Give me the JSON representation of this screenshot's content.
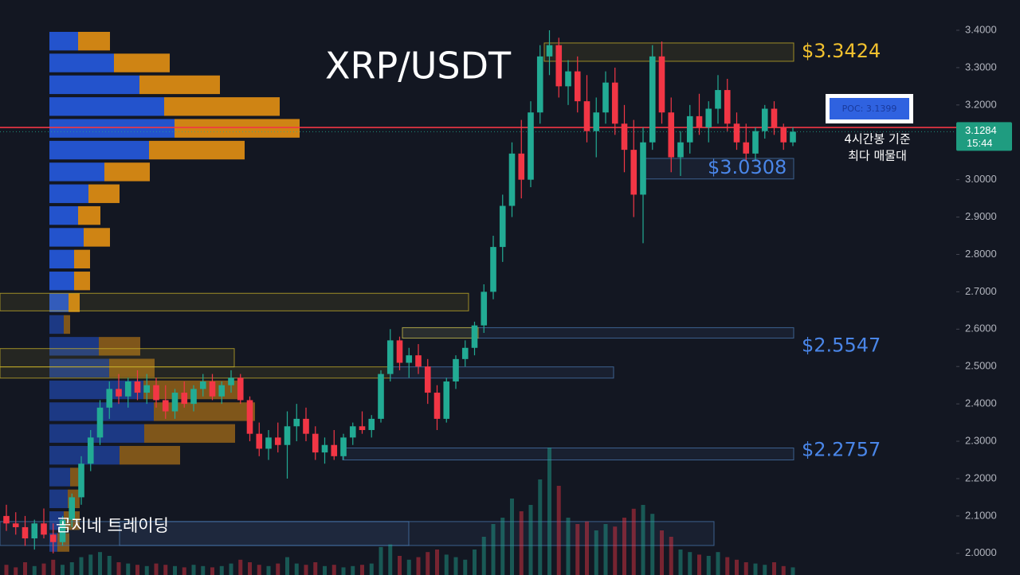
{
  "chart_data": {
    "type": "candlestick",
    "title": "XRP/USDT",
    "watermark": "곰지네 트레이딩",
    "up_color": "#22ab94",
    "down_color": "#f23645",
    "ylim": [
      1.942,
      3.481
    ],
    "yticks": [
      {
        "value": 2.0,
        "label": "2.0000"
      },
      {
        "value": 2.1,
        "label": "2.1000"
      },
      {
        "value": 2.2,
        "label": "2.2000"
      },
      {
        "value": 2.3,
        "label": "2.3000"
      },
      {
        "value": 2.4,
        "label": "2.4000"
      },
      {
        "value": 2.5,
        "label": "2.5000"
      },
      {
        "value": 2.6,
        "label": "2.6000"
      },
      {
        "value": 2.7,
        "label": "2.7000"
      },
      {
        "value": 2.8,
        "label": "2.8000"
      },
      {
        "value": 2.9,
        "label": "2.9000"
      },
      {
        "value": 3.0,
        "label": "3.0000"
      },
      {
        "value": 3.1,
        "label": "3.1000"
      },
      {
        "value": 3.2,
        "label": "3.2000"
      },
      {
        "value": 3.3,
        "label": "3.3000"
      },
      {
        "value": 3.4,
        "label": "3.4000"
      }
    ],
    "last_price": 3.1284,
    "time_label": "15:44",
    "poc": {
      "value": 3.1399,
      "label": "POC: 3.1399",
      "color": "#2f62e0"
    },
    "poc_note": [
      "4시간봉 기준",
      "최다 매물대"
    ],
    "levels": [
      {
        "value": 3.3424,
        "label": "$3.3424",
        "color": "#f2c12e"
      },
      {
        "value": 3.0308,
        "label": "$3.0308",
        "color": "#4a86e8"
      },
      {
        "value": 2.5547,
        "label": "$2.5547",
        "color": "#4a86e8"
      },
      {
        "value": 2.2757,
        "label": "$2.2757",
        "color": "#4a86e8"
      }
    ],
    "zones": [
      {
        "low": 3.317,
        "high": 3.366,
        "color": "#c9b22a"
      },
      {
        "low": 3.002,
        "high": 3.057,
        "color": "#4a78b0"
      },
      {
        "low": 2.649,
        "high": 2.696,
        "color": "#c9b22a"
      },
      {
        "low": 2.576,
        "high": 2.604,
        "color": "#4a78b0"
      },
      {
        "low": 2.576,
        "high": 2.604,
        "color": "#c9b22a"
      },
      {
        "low": 2.499,
        "high": 2.548,
        "color": "#c9b22a"
      },
      {
        "low": 2.469,
        "high": 2.499,
        "color": "#c9b22a"
      },
      {
        "low": 2.469,
        "high": 2.499,
        "color": "#4a78b0"
      },
      {
        "low": 2.25,
        "high": 2.282,
        "color": "#4a78b0"
      },
      {
        "low": 2.021,
        "high": 2.085,
        "color": "#4a78b0"
      },
      {
        "low": 2.021,
        "high": 2.085,
        "color": "#4a78b0"
      }
    ],
    "volume_profile": {
      "buy_color": "#2456d6",
      "sell_color": "#d98a14",
      "bins": [
        2.0,
        2.0583,
        2.1167,
        2.175,
        2.2333,
        2.2917,
        2.35,
        2.4083,
        2.4667,
        2.525,
        2.5833,
        2.6417,
        2.7,
        2.7583,
        2.8167,
        2.875,
        2.9333,
        2.9917,
        3.05,
        3.1083,
        3.1667,
        3.225,
        3.2833,
        3.3417,
        3.4
      ],
      "buy": [
        10,
        18,
        23,
        26,
        88,
        119,
        131,
        118,
        75,
        62,
        18,
        24,
        31,
        31,
        43,
        36,
        49,
        69,
        125,
        157,
        144,
        113,
        81,
        36
      ],
      "sell": [
        15,
        20,
        15,
        12,
        76,
        114,
        127,
        120,
        57,
        52,
        8,
        14,
        20,
        20,
        33,
        28,
        39,
        57,
        120,
        157,
        145,
        101,
        70,
        40
      ]
    },
    "ohlc": [
      [
        2.1,
        2.13,
        2.06,
        2.08
      ],
      [
        2.08,
        2.11,
        2.05,
        2.07
      ],
      [
        2.07,
        2.1,
        2.02,
        2.04
      ],
      [
        2.04,
        2.09,
        2.01,
        2.08
      ],
      [
        2.08,
        2.12,
        2.04,
        2.05
      ],
      [
        2.05,
        2.08,
        2.0,
        2.03
      ],
      [
        2.03,
        2.1,
        2.02,
        2.09
      ],
      [
        2.09,
        2.16,
        2.07,
        2.15
      ],
      [
        2.15,
        2.26,
        2.13,
        2.24
      ],
      [
        2.24,
        2.33,
        2.22,
        2.31
      ],
      [
        2.31,
        2.41,
        2.29,
        2.39
      ],
      [
        2.39,
        2.46,
        2.36,
        2.44
      ],
      [
        2.44,
        2.48,
        2.4,
        2.42
      ],
      [
        2.42,
        2.47,
        2.39,
        2.46
      ],
      [
        2.46,
        2.49,
        2.41,
        2.43
      ],
      [
        2.43,
        2.48,
        2.4,
        2.45
      ],
      [
        2.45,
        2.47,
        2.39,
        2.41
      ],
      [
        2.41,
        2.45,
        2.36,
        2.38
      ],
      [
        2.38,
        2.44,
        2.36,
        2.43
      ],
      [
        2.43,
        2.46,
        2.39,
        2.4
      ],
      [
        2.4,
        2.45,
        2.38,
        2.44
      ],
      [
        2.44,
        2.48,
        2.42,
        2.46
      ],
      [
        2.46,
        2.48,
        2.41,
        2.42
      ],
      [
        2.42,
        2.46,
        2.4,
        2.45
      ],
      [
        2.45,
        2.49,
        2.43,
        2.47
      ],
      [
        2.47,
        2.48,
        2.4,
        2.41
      ],
      [
        2.41,
        2.42,
        2.3,
        2.32
      ],
      [
        2.32,
        2.35,
        2.26,
        2.28
      ],
      [
        2.28,
        2.33,
        2.25,
        2.31
      ],
      [
        2.31,
        2.35,
        2.27,
        2.29
      ],
      [
        2.29,
        2.38,
        2.2,
        2.34
      ],
      [
        2.34,
        2.4,
        2.3,
        2.36
      ],
      [
        2.36,
        2.39,
        2.3,
        2.32
      ],
      [
        2.32,
        2.34,
        2.25,
        2.27
      ],
      [
        2.27,
        2.31,
        2.24,
        2.29
      ],
      [
        2.29,
        2.33,
        2.25,
        2.26
      ],
      [
        2.26,
        2.32,
        2.25,
        2.31
      ],
      [
        2.31,
        2.35,
        2.29,
        2.34
      ],
      [
        2.34,
        2.38,
        2.32,
        2.33
      ],
      [
        2.33,
        2.37,
        2.31,
        2.36
      ],
      [
        2.36,
        2.49,
        2.35,
        2.48
      ],
      [
        2.48,
        2.6,
        2.46,
        2.57
      ],
      [
        2.57,
        2.58,
        2.49,
        2.51
      ],
      [
        2.51,
        2.55,
        2.47,
        2.53
      ],
      [
        2.53,
        2.56,
        2.48,
        2.5
      ],
      [
        2.5,
        2.52,
        2.4,
        2.43
      ],
      [
        2.43,
        2.45,
        2.33,
        2.36
      ],
      [
        2.36,
        2.47,
        2.35,
        2.46
      ],
      [
        2.46,
        2.53,
        2.44,
        2.52
      ],
      [
        2.52,
        2.57,
        2.5,
        2.55
      ],
      [
        2.55,
        2.62,
        2.53,
        2.61
      ],
      [
        2.61,
        2.72,
        2.59,
        2.7
      ],
      [
        2.7,
        2.85,
        2.68,
        2.82
      ],
      [
        2.82,
        2.96,
        2.78,
        2.93
      ],
      [
        2.93,
        3.1,
        2.9,
        3.07
      ],
      [
        3.07,
        3.16,
        2.95,
        3.0
      ],
      [
        3.0,
        3.21,
        2.98,
        3.18
      ],
      [
        3.18,
        3.36,
        3.15,
        3.33
      ],
      [
        3.33,
        3.4,
        3.28,
        3.36
      ],
      [
        3.36,
        3.38,
        3.22,
        3.25
      ],
      [
        3.25,
        3.32,
        3.2,
        3.29
      ],
      [
        3.29,
        3.33,
        3.18,
        3.21
      ],
      [
        3.21,
        3.28,
        3.1,
        3.13
      ],
      [
        3.13,
        3.22,
        3.06,
        3.18
      ],
      [
        3.18,
        3.29,
        3.15,
        3.26
      ],
      [
        3.26,
        3.3,
        3.12,
        3.15
      ],
      [
        3.15,
        3.2,
        3.02,
        3.08
      ],
      [
        3.08,
        3.16,
        2.9,
        2.96
      ],
      [
        2.96,
        3.14,
        2.83,
        3.1
      ],
      [
        3.1,
        3.36,
        3.08,
        3.33
      ],
      [
        3.33,
        3.37,
        3.15,
        3.18
      ],
      [
        3.18,
        3.22,
        3.02,
        3.06
      ],
      [
        3.06,
        3.13,
        3.01,
        3.1
      ],
      [
        3.1,
        3.2,
        3.07,
        3.17
      ],
      [
        3.17,
        3.23,
        3.12,
        3.14
      ],
      [
        3.14,
        3.21,
        3.1,
        3.19
      ],
      [
        3.19,
        3.28,
        3.15,
        3.24
      ],
      [
        3.24,
        3.27,
        3.13,
        3.15
      ],
      [
        3.15,
        3.18,
        3.08,
        3.1
      ],
      [
        3.1,
        3.15,
        3.05,
        3.07
      ],
      [
        3.07,
        3.14,
        3.05,
        3.13
      ],
      [
        3.13,
        3.2,
        3.11,
        3.19
      ],
      [
        3.19,
        3.21,
        3.12,
        3.14
      ],
      [
        3.14,
        3.15,
        3.08,
        3.1
      ],
      [
        3.1,
        3.14,
        3.09,
        3.1284
      ]
    ],
    "volume": [
      8,
      6,
      10,
      7,
      9,
      12,
      8,
      10,
      14,
      16,
      18,
      15,
      10,
      9,
      8,
      7,
      9,
      8,
      7,
      6,
      8,
      7,
      6,
      7,
      9,
      12,
      10,
      8,
      7,
      9,
      14,
      9,
      8,
      10,
      7,
      8,
      6,
      7,
      8,
      9,
      22,
      24,
      15,
      12,
      14,
      18,
      20,
      16,
      14,
      12,
      20,
      30,
      40,
      45,
      60,
      50,
      55,
      75,
      100,
      70,
      45,
      40,
      42,
      35,
      40,
      38,
      45,
      52,
      55,
      48,
      35,
      30,
      20,
      18,
      16,
      15,
      18,
      14,
      12,
      10,
      9,
      8,
      10,
      7,
      6
    ]
  }
}
